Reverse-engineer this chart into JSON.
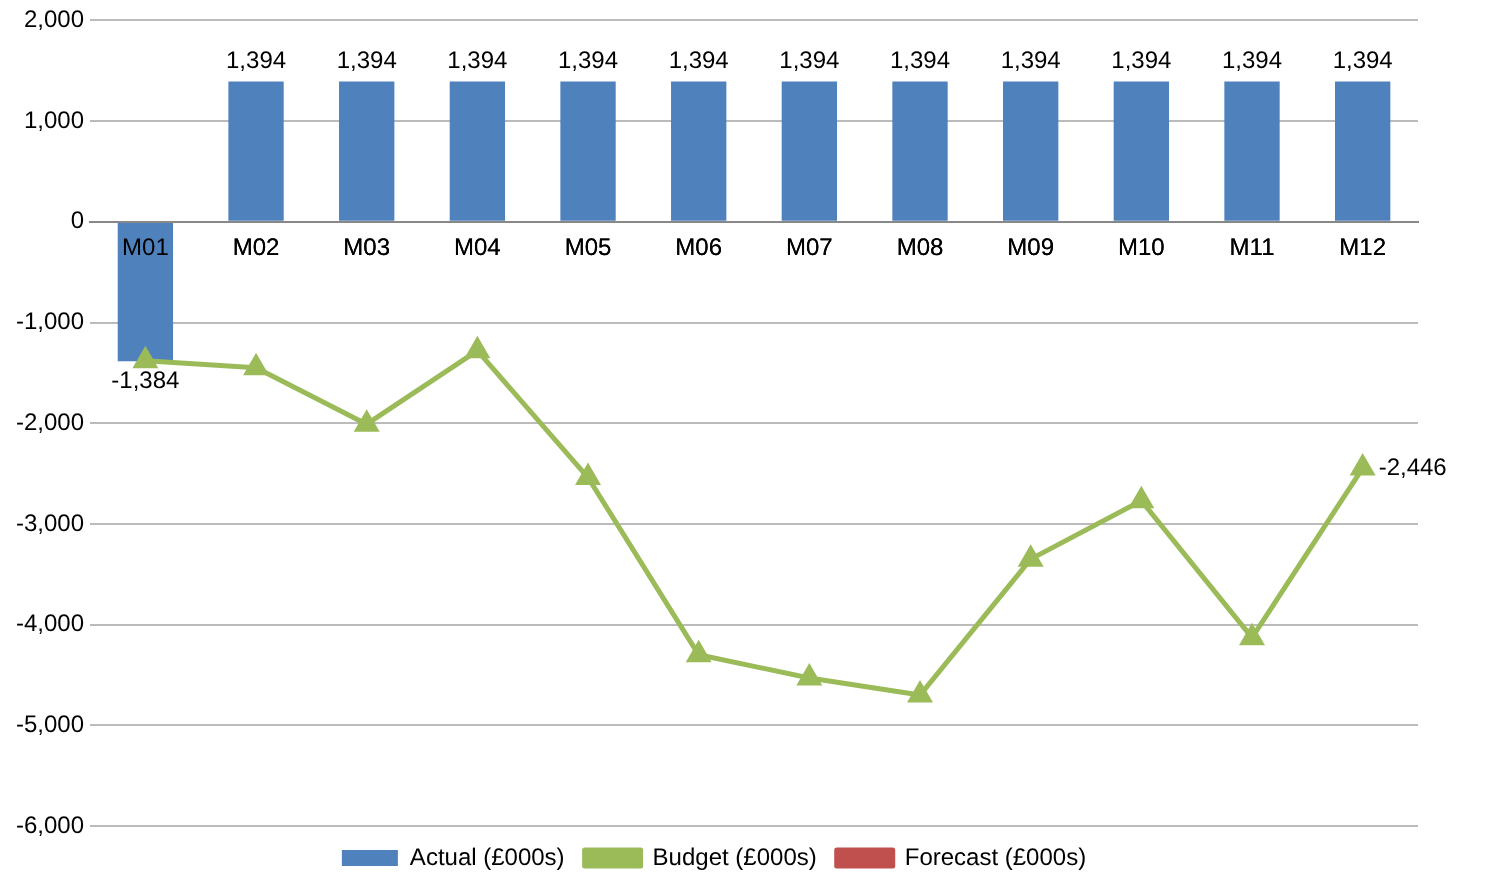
{
  "chart_data": {
    "type": "bar",
    "categories": [
      "M01",
      "M02",
      "M03",
      "M04",
      "M05",
      "M06",
      "M07",
      "M08",
      "M09",
      "M10",
      "M11",
      "M12"
    ],
    "series": [
      {
        "name": "Actual (£000s)",
        "color": "#4f81bd",
        "values": [
          -1384,
          1394,
          1394,
          1394,
          1394,
          1394,
          1394,
          1394,
          1394,
          1394,
          1394,
          1394
        ],
        "value_labels": [
          "-1,384",
          "1,394",
          "1,394",
          "1,394",
          "1,394",
          "1,394",
          "1,394",
          "1,394",
          "1,394",
          "1,394",
          "1,394",
          "1,394"
        ]
      },
      {
        "name": "Budget (£000s)",
        "type": "line",
        "color": "#9bbb59",
        "marker": "triangle",
        "values": [
          -1380,
          -1450,
          -2010,
          -1280,
          -2540,
          -4300,
          -4530,
          -4700,
          -3350,
          -2770,
          -4130,
          -2446
        ],
        "value_labels": [
          null,
          null,
          null,
          null,
          null,
          null,
          null,
          null,
          null,
          null,
          null,
          "-2,446"
        ]
      },
      {
        "name": "Forecast (£000s)",
        "type": "line",
        "color": "#c0504d",
        "marker": "square",
        "values": [
          null,
          null,
          null,
          null,
          null,
          null,
          null,
          null,
          null,
          null,
          null,
          null
        ]
      }
    ],
    "ylim": [
      -6000,
      2000
    ],
    "yticks": [
      {
        "value": -6000,
        "label": "-6,000"
      },
      {
        "value": -5000,
        "label": "-5,000"
      },
      {
        "value": -4000,
        "label": "-4,000"
      },
      {
        "value": -3000,
        "label": "-3,000"
      },
      {
        "value": -2000,
        "label": "-2,000"
      },
      {
        "value": -1000,
        "label": "-1,000"
      },
      0,
      {
        "value": 1000,
        "label": "1,000"
      },
      {
        "value": 2000,
        "label": "2,000"
      }
    ],
    "grid": "y",
    "legend": "bottom"
  }
}
